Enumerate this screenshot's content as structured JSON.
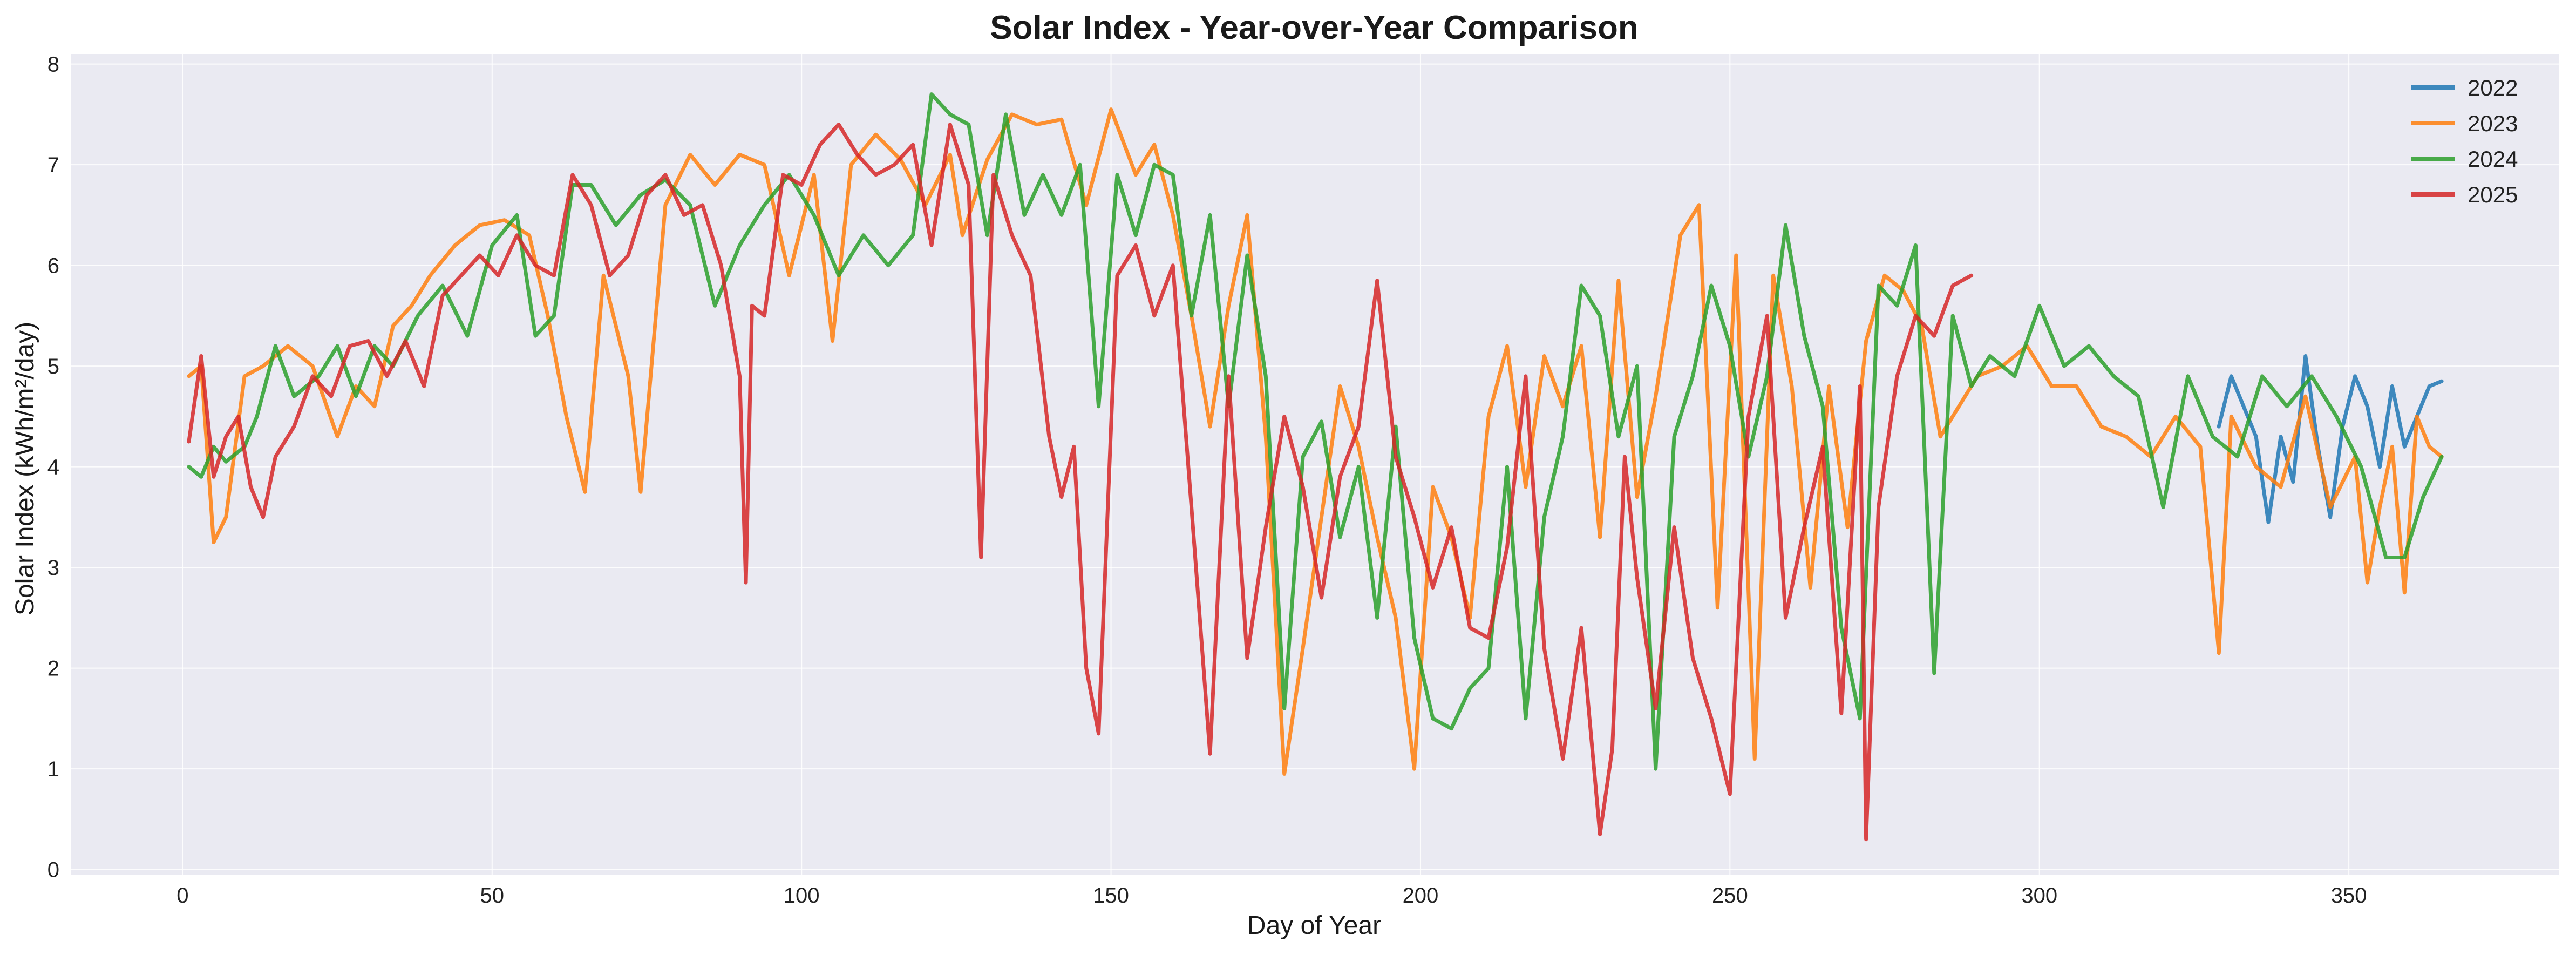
{
  "chart_data": {
    "type": "line",
    "title": "Solar Index - Year-over-Year Comparison",
    "xlabel": "Day of Year",
    "ylabel": "Solar Index (kWh/m²/day)",
    "xlim": [
      -18,
      384
    ],
    "ylim": [
      -0.05,
      8.1
    ],
    "xticks": [
      0,
      50,
      100,
      150,
      200,
      250,
      300,
      350
    ],
    "yticks": [
      0,
      1,
      2,
      3,
      4,
      5,
      6,
      7,
      8
    ],
    "grid": true,
    "legend_position": "top-right",
    "series": [
      {
        "name": "2022",
        "color": "#1f77b4",
        "x": [
          329,
          331,
          333,
          335,
          337,
          339,
          341,
          343,
          345,
          347,
          349,
          351,
          353,
          355,
          357,
          359,
          361,
          363,
          365
        ],
        "y": [
          4.4,
          4.9,
          4.6,
          4.3,
          3.45,
          4.3,
          3.85,
          5.1,
          4.2,
          3.5,
          4.4,
          4.9,
          4.6,
          4.0,
          4.8,
          4.2,
          4.5,
          4.8,
          4.85
        ]
      },
      {
        "name": "2023",
        "color": "#ff7f0e",
        "x": [
          1,
          3,
          5,
          7,
          10,
          13,
          17,
          21,
          25,
          28,
          31,
          34,
          37,
          40,
          44,
          48,
          52,
          56,
          59,
          62,
          65,
          68,
          72,
          74,
          78,
          82,
          86,
          90,
          94,
          98,
          102,
          105,
          108,
          112,
          116,
          120,
          124,
          126,
          130,
          134,
          138,
          142,
          146,
          150,
          154,
          157,
          160,
          163,
          166,
          169,
          172,
          175,
          178,
          181,
          184,
          187,
          190,
          193,
          196,
          199,
          202,
          205,
          208,
          211,
          214,
          217,
          220,
          223,
          226,
          229,
          232,
          235,
          238,
          242,
          245,
          248,
          251,
          254,
          257,
          260,
          263,
          266,
          269,
          272,
          275,
          278,
          281,
          284,
          287,
          290,
          294,
          298,
          302,
          306,
          310,
          314,
          318,
          322,
          326,
          329,
          331,
          335,
          339,
          343,
          347,
          351,
          353,
          355,
          357,
          359,
          361,
          363,
          365
        ],
        "y": [
          4.9,
          5.0,
          3.25,
          3.5,
          4.9,
          5.0,
          5.2,
          5.0,
          4.3,
          4.8,
          4.6,
          5.4,
          5.6,
          5.9,
          6.2,
          6.4,
          6.45,
          6.3,
          5.5,
          4.5,
          3.75,
          5.9,
          4.9,
          3.75,
          6.6,
          7.1,
          6.8,
          7.1,
          7.0,
          5.9,
          6.9,
          5.25,
          7.0,
          7.3,
          7.05,
          6.6,
          7.1,
          6.3,
          7.05,
          7.5,
          7.4,
          7.45,
          6.6,
          7.55,
          6.9,
          7.2,
          6.5,
          5.5,
          4.4,
          5.6,
          6.5,
          4.3,
          0.95,
          2.2,
          3.5,
          4.8,
          4.2,
          3.3,
          2.5,
          1.0,
          3.8,
          3.3,
          2.5,
          4.5,
          5.2,
          3.8,
          5.1,
          4.6,
          5.2,
          3.3,
          5.85,
          3.7,
          4.7,
          6.3,
          6.6,
          2.6,
          6.1,
          1.1,
          5.9,
          4.8,
          2.8,
          4.8,
          3.4,
          5.25,
          5.9,
          5.75,
          5.4,
          4.3,
          4.6,
          4.9,
          5.0,
          5.2,
          4.8,
          4.8,
          4.4,
          4.3,
          4.1,
          4.5,
          4.2,
          2.15,
          4.5,
          4.0,
          3.8,
          4.7,
          3.6,
          4.1,
          2.85,
          3.6,
          4.2,
          2.75,
          4.5,
          4.2,
          4.1
        ]
      },
      {
        "name": "2024",
        "color": "#2ca02c",
        "x": [
          1,
          3,
          5,
          7,
          10,
          12,
          15,
          18,
          22,
          25,
          28,
          31,
          34,
          38,
          42,
          46,
          50,
          54,
          57,
          60,
          63,
          66,
          70,
          74,
          78,
          82,
          86,
          90,
          94,
          98,
          102,
          106,
          110,
          114,
          118,
          121,
          124,
          127,
          130,
          133,
          136,
          139,
          142,
          145,
          148,
          151,
          154,
          157,
          160,
          163,
          166,
          169,
          172,
          175,
          178,
          181,
          184,
          187,
          190,
          193,
          196,
          199,
          202,
          205,
          208,
          211,
          214,
          217,
          220,
          223,
          226,
          229,
          232,
          235,
          238,
          241,
          244,
          247,
          250,
          253,
          256,
          259,
          262,
          265,
          268,
          271,
          274,
          277,
          280,
          283,
          286,
          289,
          292,
          296,
          300,
          304,
          308,
          312,
          316,
          320,
          324,
          328,
          332,
          336,
          340,
          344,
          348,
          352,
          356,
          359,
          362,
          365
        ],
        "y": [
          4.0,
          3.9,
          4.2,
          4.05,
          4.2,
          4.5,
          5.2,
          4.7,
          4.9,
          5.2,
          4.7,
          5.2,
          5.0,
          5.5,
          5.8,
          5.3,
          6.2,
          6.5,
          5.3,
          5.5,
          6.8,
          6.8,
          6.4,
          6.7,
          6.85,
          6.6,
          5.6,
          6.2,
          6.6,
          6.9,
          6.5,
          5.9,
          6.3,
          6.0,
          6.3,
          7.7,
          7.5,
          7.4,
          6.3,
          7.5,
          6.5,
          6.9,
          6.5,
          7.0,
          4.6,
          6.9,
          6.3,
          7.0,
          6.9,
          5.5,
          6.5,
          4.6,
          6.1,
          4.9,
          1.6,
          4.1,
          4.45,
          3.3,
          4.0,
          2.5,
          4.4,
          2.3,
          1.5,
          1.4,
          1.8,
          2.0,
          4.0,
          1.5,
          3.5,
          4.3,
          5.8,
          5.5,
          4.3,
          5.0,
          1.0,
          4.3,
          4.9,
          5.8,
          5.2,
          4.1,
          4.9,
          6.4,
          5.3,
          4.6,
          2.4,
          1.5,
          5.8,
          5.6,
          6.2,
          1.95,
          5.5,
          4.8,
          5.1,
          4.9,
          5.6,
          5.0,
          5.2,
          4.9,
          4.7,
          3.6,
          4.9,
          4.3,
          4.1,
          4.9,
          4.6,
          4.9,
          4.5,
          4.0,
          3.1,
          3.1,
          3.7,
          4.1
        ]
      },
      {
        "name": "2025",
        "color": "#d62728",
        "x": [
          1,
          3,
          5,
          7,
          9,
          11,
          13,
          15,
          18,
          21,
          24,
          27,
          30,
          33,
          36,
          39,
          42,
          45,
          48,
          51,
          54,
          57,
          60,
          63,
          66,
          69,
          72,
          75,
          78,
          81,
          84,
          87,
          90,
          91,
          92,
          94,
          97,
          100,
          103,
          106,
          109,
          112,
          115,
          118,
          121,
          124,
          127,
          129,
          131,
          134,
          137,
          140,
          142,
          144,
          146,
          148,
          151,
          154,
          157,
          160,
          163,
          166,
          169,
          172,
          175,
          178,
          181,
          184,
          187,
          190,
          193,
          196,
          199,
          202,
          205,
          208,
          211,
          214,
          217,
          220,
          223,
          226,
          229,
          231,
          233,
          235,
          238,
          241,
          244,
          247,
          250,
          253,
          256,
          259,
          262,
          265,
          268,
          271,
          272,
          274,
          277,
          280,
          283,
          286,
          289
        ],
        "y": [
          4.25,
          5.1,
          3.9,
          4.3,
          4.5,
          3.8,
          3.5,
          4.1,
          4.4,
          4.9,
          4.7,
          5.2,
          5.25,
          4.9,
          5.25,
          4.8,
          5.7,
          5.9,
          6.1,
          5.9,
          6.3,
          6.0,
          5.9,
          6.9,
          6.6,
          5.9,
          6.1,
          6.7,
          6.9,
          6.5,
          6.6,
          6.0,
          4.9,
          2.85,
          5.6,
          5.5,
          6.9,
          6.8,
          7.2,
          7.4,
          7.1,
          6.9,
          7.0,
          7.2,
          6.2,
          7.4,
          6.8,
          3.1,
          6.9,
          6.3,
          5.9,
          4.3,
          3.7,
          4.2,
          2.0,
          1.35,
          5.9,
          6.2,
          5.5,
          6.0,
          3.6,
          1.15,
          4.9,
          2.1,
          3.4,
          4.5,
          3.8,
          2.7,
          3.9,
          4.4,
          5.85,
          4.1,
          3.5,
          2.8,
          3.4,
          2.4,
          2.3,
          3.2,
          4.9,
          2.2,
          1.1,
          2.4,
          0.35,
          1.2,
          4.1,
          2.9,
          1.6,
          3.4,
          2.1,
          1.5,
          0.75,
          4.5,
          5.5,
          2.5,
          3.4,
          4.2,
          1.55,
          4.8,
          0.3,
          3.6,
          4.9,
          5.5,
          5.3,
          5.8,
          5.9
        ]
      }
    ]
  }
}
